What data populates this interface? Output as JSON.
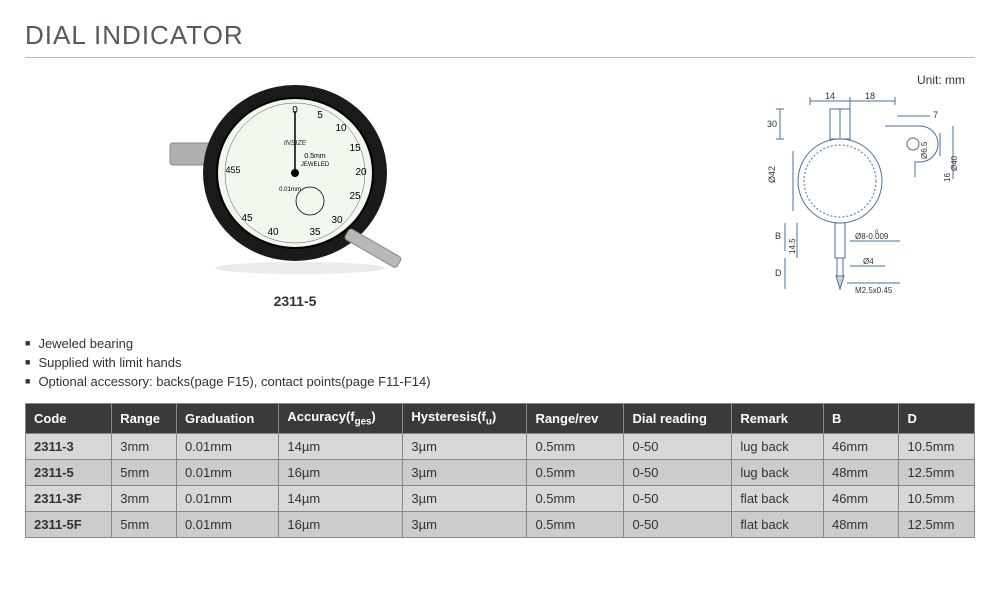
{
  "title": "DIAL INDICATOR",
  "product_photo": {
    "model_caption": "2311-5",
    "dial_face": {
      "face_color": "#f2f8ee",
      "body_color": "#1a1a1a",
      "stem_color": "#a8a8a8",
      "markings": [
        "0",
        "5",
        "10",
        "15",
        "20",
        "25",
        "30",
        "35",
        "40",
        "45",
        "455"
      ],
      "center_text_1": "0.5mm",
      "center_text_2": "JEWELED",
      "small_text": "0.01mm"
    }
  },
  "technical_drawing": {
    "unit_label": "Unit: mm",
    "line_color": "#4a6fa0",
    "text_color": "#333",
    "dims": {
      "top_left": "14",
      "top_right": "18",
      "top_small": "7",
      "left_height": "30",
      "dia_42": "Ø42",
      "dia_65": "Ø6.5",
      "dia_40": "Ø40",
      "height_16": "16",
      "b_label": "B",
      "h_145": "14.5",
      "dia_8": "Ø8-0.009",
      "dia_4": "Ø4",
      "d_label": "D",
      "thread": "M2.5x0.45",
      "zero_sup": "0"
    }
  },
  "features": [
    "Jeweled bearing",
    "Supplied with limit hands",
    "Optional accessory: backs(page F15), contact points(page F11-F14)"
  ],
  "table": {
    "columns": [
      "Code",
      "Range",
      "Graduation",
      "Accuracy(fges)",
      "Hysteresis(fu)",
      "Range/rev",
      "Dial reading",
      "Remark",
      "B",
      "D"
    ],
    "column_widths": [
      "80px",
      "60px",
      "95px",
      "115px",
      "115px",
      "90px",
      "100px",
      "85px",
      "70px",
      "70px"
    ],
    "header_bg": "#3a3a3a",
    "header_fg": "#ffffff",
    "row_bg_odd": "#d8d8d8",
    "row_bg_even": "#cccccc",
    "border_color": "#888888",
    "rows": [
      [
        "2311-3",
        "3mm",
        "0.01mm",
        "14µm",
        "3µm",
        "0.5mm",
        "0-50",
        "lug back",
        "46mm",
        "10.5mm"
      ],
      [
        "2311-5",
        "5mm",
        "0.01mm",
        "16µm",
        "3µm",
        "0.5mm",
        "0-50",
        "lug back",
        "48mm",
        "12.5mm"
      ],
      [
        "2311-3F",
        "3mm",
        "0.01mm",
        "14µm",
        "3µm",
        "0.5mm",
        "0-50",
        "flat back",
        "46mm",
        "10.5mm"
      ],
      [
        "2311-5F",
        "5mm",
        "0.01mm",
        "16µm",
        "3µm",
        "0.5mm",
        "0-50",
        "flat back",
        "48mm",
        "12.5mm"
      ]
    ]
  }
}
